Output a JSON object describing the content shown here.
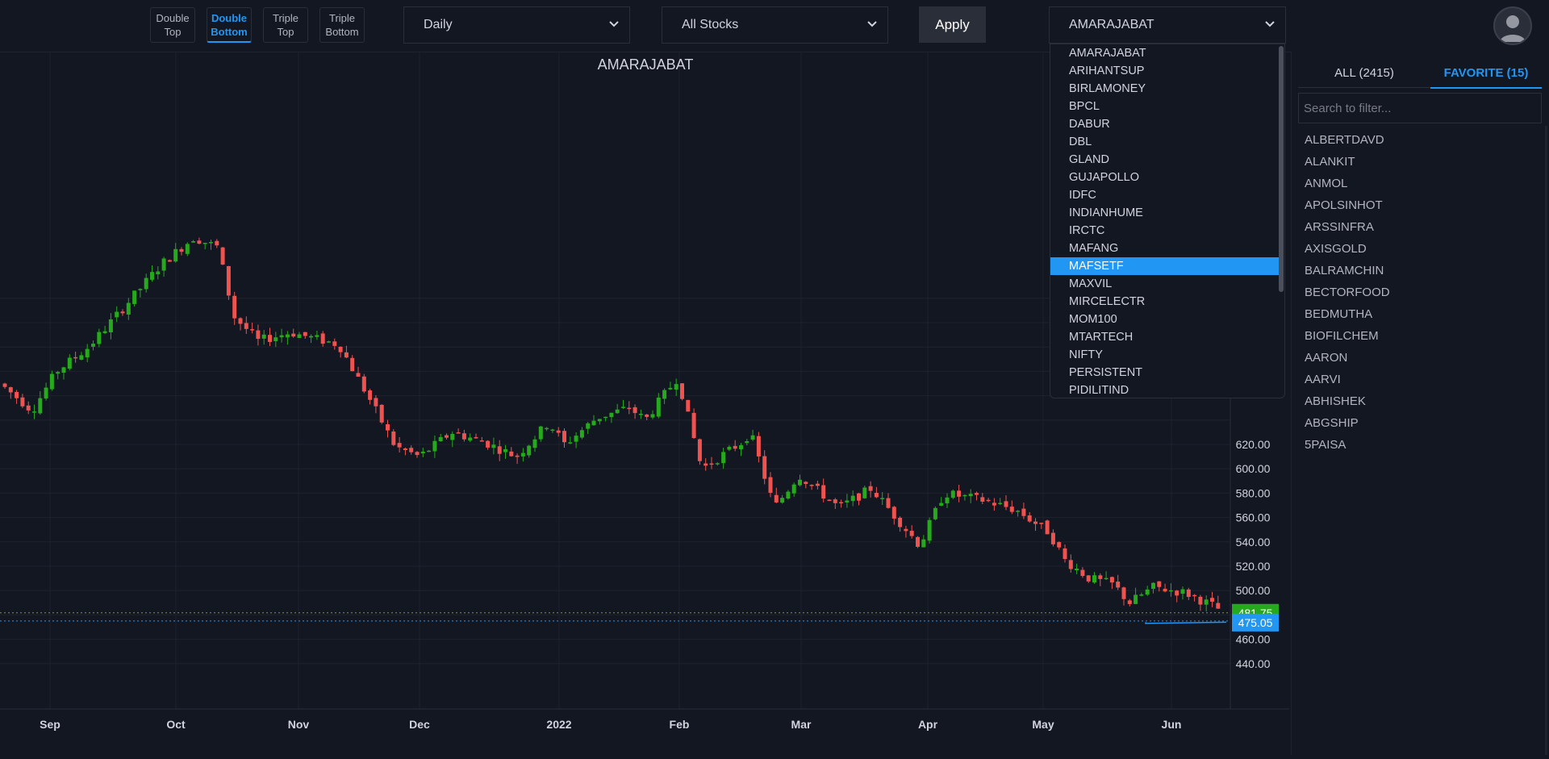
{
  "toolbar": {
    "patterns": [
      {
        "line1": "Double",
        "line2": "Top",
        "active": false
      },
      {
        "line1": "Double",
        "line2": "Bottom",
        "active": true
      },
      {
        "line1": "Triple",
        "line2": "Top",
        "active": false
      },
      {
        "line1": "Triple",
        "line2": "Bottom",
        "active": false
      }
    ],
    "interval": "Daily",
    "universe": "All Stocks",
    "apply_label": "Apply",
    "symbol": "AMARAJABAT"
  },
  "chart": {
    "title": "AMARAJABAT"
  },
  "chart_data": {
    "type": "candlestick",
    "title": "AMARAJABAT",
    "x_tick_labels": [
      "Sep",
      "Oct",
      "Nov",
      "Dec",
      "2022",
      "Feb",
      "Mar",
      "Apr",
      "May",
      "Jun"
    ],
    "y_tick_labels": [
      "620.00",
      "600.00",
      "580.00",
      "560.00",
      "540.00",
      "520.00",
      "500.00",
      "460.00",
      "440.00"
    ],
    "ylim": [
      430,
      730
    ],
    "price_labels": [
      {
        "value": "481.75",
        "color": "#26a91d"
      },
      {
        "value": "475.05",
        "color": "#2196f3"
      }
    ],
    "grid": true,
    "up_color": "#26a91d",
    "down_color": "#ef5350"
  },
  "symbol_dropdown": {
    "items": [
      "AMARAJABAT",
      "ARIHANTSUP",
      "BIRLAMONEY",
      "BPCL",
      "DABUR",
      "DBL",
      "GLAND",
      "GUJAPOLLO",
      "IDFC",
      "INDIANHUME",
      "IRCTC",
      "MAFANG",
      "MAFSETF",
      "MAXVIL",
      "MIRCELECTR",
      "MOM100",
      "MTARTECH",
      "NIFTY",
      "PERSISTENT",
      "PIDILITIND"
    ],
    "selected_index": 12
  },
  "side_panel": {
    "tab_all": "ALL (2415)",
    "tab_favorite": "FAVORITE (15)",
    "filter_placeholder": "Search to filter...",
    "favorites": [
      "ALBERTDAVD",
      "ALANKIT",
      "ANMOL",
      "APOLSINHOT",
      "ARSSINFRA",
      "AXISGOLD",
      "BALRAMCHIN",
      "BECTORFOOD",
      "BEDMUTHA",
      "BIOFILCHEM",
      "AARON",
      "AARVI",
      "ABHISHEK",
      "ABGSHIP",
      "5PAISA"
    ]
  },
  "colors": {
    "background": "#131722",
    "accent": "#2196f3",
    "up": "#26a91d",
    "down": "#ef5350"
  }
}
